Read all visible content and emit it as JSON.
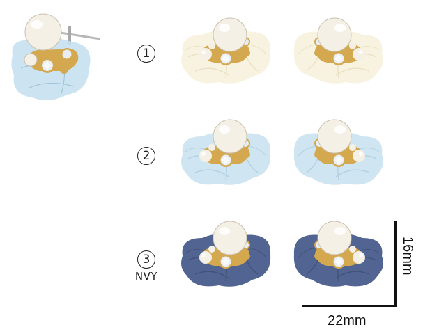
{
  "variants": [
    {
      "number": "1",
      "color_code": "",
      "ribbon_color": "#f7f2dc",
      "ribbon_edge": "#e6dcba"
    },
    {
      "number": "2",
      "color_code": "",
      "ribbon_color": "#c7e1ef",
      "ribbon_edge": "#a5c8dc"
    },
    {
      "number": "3",
      "color_code": "NVY",
      "ribbon_color": "#34497e",
      "ribbon_edge": "#233461"
    }
  ],
  "dimensions": {
    "width": "22mm",
    "height": "16mm"
  },
  "colors": {
    "pearl": "#f4f0e6",
    "pearl_shadow": "#c9c0ad",
    "gold": "#d3a84e",
    "crystal": "#e8eef2",
    "post": "#bcbcbc",
    "primary_ribbon": "#c7e1ef"
  }
}
